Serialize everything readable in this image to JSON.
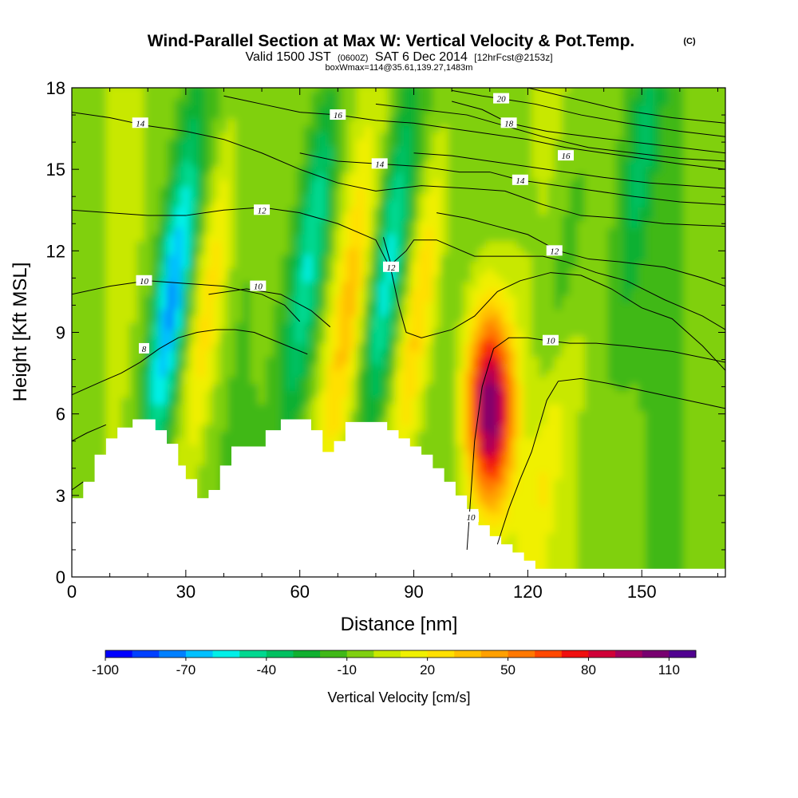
{
  "chart_data": {
    "type": "heatmap",
    "title": "Wind-Parallel Section at Max W: Vertical Velocity & Pot.Temp.",
    "title_mark": "(C)",
    "subtitle": {
      "valid": "Valid 1500 JST",
      "utc": "(0600Z)",
      "date": "SAT 6 Dec 2014",
      "forecast": "[12hrFcst@2153z]"
    },
    "subtitle2": "boxWmax=114@35.61,139.27,1483m",
    "xlabel": "Distance [nm]",
    "ylabel": "Height [Kft MSL]",
    "xlim": [
      0,
      172
    ],
    "ylim": [
      0,
      18
    ],
    "xticks": [
      "0",
      "30",
      "60",
      "90",
      "120",
      "150"
    ],
    "yticks": [
      "0",
      "3",
      "6",
      "9",
      "12",
      "15",
      "18"
    ],
    "colorbar": {
      "label": "Vertical Velocity [cm/s]",
      "range": [
        -100,
        120
      ],
      "step": 10,
      "tick_labels": [
        "-100",
        "-70",
        "-40",
        "-10",
        "20",
        "50",
        "80",
        "110"
      ],
      "colors": [
        "#0000ff",
        "#0040ff",
        "#0080ff",
        "#00c0ff",
        "#00f0e8",
        "#00d890",
        "#00c060",
        "#10b030",
        "#40b818",
        "#80d010",
        "#c8e800",
        "#f0f000",
        "#ffe000",
        "#ffc000",
        "#ffa000",
        "#ff7800",
        "#ff4800",
        "#f01010",
        "#d00038",
        "#a00060",
        "#780070",
        "#500090"
      ]
    },
    "velocity_features": [
      {
        "name": "updraft max",
        "x": 110,
        "z": 6.2,
        "w": 114
      },
      {
        "name": "updraft",
        "x": 91,
        "z": 9.5,
        "w": 40
      },
      {
        "name": "updraft",
        "x": 125,
        "z": 5,
        "w": 35
      },
      {
        "name": "updraft band",
        "x": 36,
        "z": 10,
        "w": 35
      },
      {
        "name": "updraft band",
        "x": 73,
        "z": 10,
        "w": 35
      },
      {
        "name": "downdraft",
        "x": 26,
        "z": 10,
        "w": -70
      },
      {
        "name": "downdraft",
        "x": 63,
        "z": 12,
        "w": -50
      },
      {
        "name": "downdraft",
        "x": 83,
        "z": 11,
        "w": -50
      },
      {
        "name": "downdraft",
        "x": 128,
        "z": 9,
        "w": -30
      },
      {
        "name": "downdraft",
        "x": 150,
        "z": 15.5,
        "w": -25
      }
    ],
    "terrain": [
      [
        0,
        2.9
      ],
      [
        3,
        3.5
      ],
      [
        6,
        4.5
      ],
      [
        9,
        5.1
      ],
      [
        12,
        5.5
      ],
      [
        16,
        5.8
      ],
      [
        22,
        5.4
      ],
      [
        25,
        4.9
      ],
      [
        28,
        4.1
      ],
      [
        30,
        3.6
      ],
      [
        33,
        2.9
      ],
      [
        36,
        3.2
      ],
      [
        39,
        4.1
      ],
      [
        42,
        4.8
      ],
      [
        47,
        4.8
      ],
      [
        51,
        5.4
      ],
      [
        55,
        5.8
      ],
      [
        60,
        5.8
      ],
      [
        63,
        5.4
      ],
      [
        66,
        4.6
      ],
      [
        69,
        5.0
      ],
      [
        72,
        5.7
      ],
      [
        80,
        5.7
      ],
      [
        83,
        5.4
      ],
      [
        86,
        5.1
      ],
      [
        89,
        4.8
      ],
      [
        92,
        4.5
      ],
      [
        95,
        4.0
      ],
      [
        98,
        3.5
      ],
      [
        101,
        3.0
      ],
      [
        104,
        2.5
      ],
      [
        107,
        1.9
      ],
      [
        110,
        1.5
      ],
      [
        113,
        1.2
      ],
      [
        116,
        0.9
      ],
      [
        119,
        0.6
      ],
      [
        122,
        0.3
      ],
      [
        126,
        0.3
      ],
      [
        172,
        0.3
      ]
    ],
    "theta_contours": [
      {
        "label": "8",
        "label_pos": [
          19,
          8.4
        ],
        "points": [
          [
            0,
            6.7
          ],
          [
            8,
            7.2
          ],
          [
            13,
            7.5
          ],
          [
            18,
            7.9
          ],
          [
            23,
            8.4
          ],
          [
            28,
            8.8
          ],
          [
            33,
            9.0
          ],
          [
            38,
            9.1
          ],
          [
            43,
            9.1
          ],
          [
            48,
            9.0
          ],
          [
            55,
            8.6
          ],
          [
            62,
            8.2
          ]
        ]
      },
      {
        "label": "10",
        "label_pos": [
          19,
          10.9
        ],
        "points": [
          [
            0,
            10.4
          ],
          [
            10,
            10.7
          ],
          [
            20,
            10.9
          ],
          [
            30,
            10.8
          ],
          [
            40,
            10.7
          ],
          [
            50,
            10.4
          ],
          [
            56,
            10.0
          ],
          [
            60,
            9.4
          ]
        ]
      },
      {
        "label": "10",
        "label_pos": [
          49,
          10.7
        ],
        "points": [
          [
            36,
            10.4
          ],
          [
            46,
            10.6
          ],
          [
            55,
            10.4
          ],
          [
            63,
            9.8
          ],
          [
            68,
            9.2
          ]
        ]
      },
      {
        "label": "10",
        "label_pos": [
          105,
          2.2
        ],
        "points": [
          [
            104,
            1.0
          ],
          [
            105,
            3.0
          ],
          [
            106,
            5.0
          ],
          [
            108,
            7.0
          ],
          [
            111,
            8.4
          ],
          [
            115,
            8.8
          ],
          [
            120,
            8.8
          ],
          [
            125,
            8.7
          ],
          [
            131,
            8.6
          ],
          [
            138,
            8.6
          ],
          [
            146,
            8.5
          ],
          [
            158,
            8.3
          ],
          [
            172,
            7.9
          ]
        ]
      },
      {
        "label": "10",
        "label_pos": [
          126,
          8.7
        ],
        "points": [
          [
            112,
            1.2
          ],
          [
            115,
            2.5
          ],
          [
            118,
            3.6
          ],
          [
            121,
            4.6
          ],
          [
            125,
            6.5
          ],
          [
            128,
            7.2
          ],
          [
            134,
            7.3
          ],
          [
            142,
            7.1
          ],
          [
            152,
            6.8
          ],
          [
            162,
            6.5
          ],
          [
            172,
            6.2
          ]
        ]
      },
      {
        "label": "12",
        "label_pos": [
          50,
          13.5
        ],
        "points": [
          [
            0,
            13.5
          ],
          [
            10,
            13.4
          ],
          [
            20,
            13.3
          ],
          [
            30,
            13.3
          ],
          [
            40,
            13.5
          ],
          [
            50,
            13.6
          ],
          [
            60,
            13.4
          ],
          [
            70,
            13.0
          ],
          [
            80,
            12.4
          ],
          [
            84,
            11.3
          ],
          [
            86,
            10.0
          ],
          [
            88,
            9.0
          ],
          [
            92,
            8.8
          ],
          [
            100,
            9.1
          ],
          [
            106,
            9.6
          ],
          [
            112,
            10.5
          ],
          [
            118,
            10.9
          ],
          [
            126,
            11.2
          ],
          [
            134,
            11.1
          ],
          [
            142,
            10.6
          ],
          [
            150,
            9.9
          ],
          [
            158,
            9.5
          ],
          [
            166,
            8.5
          ],
          [
            172,
            7.6
          ]
        ]
      },
      {
        "label": "12",
        "label_pos": [
          84,
          11.4
        ],
        "points": [
          [
            82,
            12.5
          ],
          [
            84,
            11.5
          ],
          [
            88,
            12.0
          ],
          [
            90,
            12.4
          ],
          [
            96,
            12.4
          ],
          [
            106,
            11.8
          ],
          [
            116,
            11.8
          ],
          [
            124,
            11.8
          ],
          [
            130,
            11.6
          ],
          [
            138,
            11.2
          ],
          [
            146,
            10.9
          ],
          [
            156,
            10.2
          ],
          [
            166,
            9.6
          ],
          [
            172,
            9.1
          ]
        ]
      },
      {
        "label": "12",
        "label_pos": [
          127,
          12.0
        ],
        "points": [
          [
            96,
            13.4
          ],
          [
            104,
            13.2
          ],
          [
            112,
            12.9
          ],
          [
            120,
            12.6
          ],
          [
            128,
            12.0
          ],
          [
            136,
            11.7
          ],
          [
            144,
            11.6
          ],
          [
            156,
            11.4
          ],
          [
            166,
            11.0
          ],
          [
            172,
            10.7
          ]
        ]
      },
      {
        "label": "14",
        "label_pos": [
          18,
          16.7
        ],
        "points": [
          [
            0,
            17.1
          ],
          [
            10,
            16.9
          ],
          [
            20,
            16.6
          ],
          [
            30,
            16.4
          ],
          [
            40,
            16.1
          ],
          [
            50,
            15.6
          ],
          [
            60,
            15.0
          ],
          [
            70,
            14.5
          ],
          [
            80,
            14.2
          ],
          [
            92,
            14.4
          ],
          [
            104,
            14.3
          ],
          [
            114,
            14.2
          ],
          [
            124,
            13.7
          ],
          [
            134,
            13.3
          ],
          [
            144,
            13.2
          ],
          [
            156,
            13.0
          ],
          [
            172,
            12.9
          ]
        ]
      },
      {
        "label": "14",
        "label_pos": [
          81,
          15.2
        ],
        "points": [
          [
            60,
            15.6
          ],
          [
            70,
            15.3
          ],
          [
            81,
            15.2
          ],
          [
            92,
            15.1
          ],
          [
            102,
            14.9
          ],
          [
            110,
            14.9
          ],
          [
            118,
            14.6
          ],
          [
            128,
            14.4
          ],
          [
            138,
            14.2
          ],
          [
            148,
            14.0
          ],
          [
            160,
            13.8
          ],
          [
            172,
            13.7
          ]
        ]
      },
      {
        "label": "14",
        "label_pos": [
          118,
          14.6
        ],
        "points": [
          [
            90,
            15.6
          ],
          [
            100,
            15.5
          ],
          [
            110,
            15.3
          ],
          [
            120,
            15.1
          ],
          [
            130,
            14.9
          ],
          [
            140,
            14.7
          ],
          [
            152,
            14.5
          ],
          [
            172,
            14.3
          ]
        ]
      },
      {
        "label": "16",
        "label_pos": [
          70,
          17.0
        ],
        "points": [
          [
            40,
            17.7
          ],
          [
            50,
            17.4
          ],
          [
            60,
            17.1
          ],
          [
            70,
            17.0
          ],
          [
            80,
            16.8
          ],
          [
            90,
            16.7
          ],
          [
            100,
            16.5
          ],
          [
            110,
            16.3
          ],
          [
            120,
            16.1
          ],
          [
            130,
            15.8
          ],
          [
            140,
            15.6
          ],
          [
            150,
            15.4
          ],
          [
            160,
            15.2
          ],
          [
            172,
            15.0
          ]
        ]
      },
      {
        "label": "16",
        "label_pos": [
          130,
          15.5
        ],
        "points": [
          [
            80,
            17.4
          ],
          [
            92,
            17.2
          ],
          [
            104,
            17.0
          ],
          [
            114,
            16.6
          ],
          [
            124,
            16.2
          ],
          [
            136,
            15.8
          ],
          [
            148,
            15.6
          ],
          [
            160,
            15.4
          ],
          [
            172,
            15.3
          ]
        ]
      },
      {
        "label": "18",
        "label_pos": [
          115,
          16.7
        ],
        "points": [
          [
            100,
            17.5
          ],
          [
            108,
            17.2
          ],
          [
            115,
            16.7
          ],
          [
            125,
            16.4
          ],
          [
            136,
            16.2
          ],
          [
            148,
            16.0
          ],
          [
            160,
            15.8
          ],
          [
            172,
            15.6
          ]
        ]
      },
      {
        "label": "20",
        "label_pos": [
          113,
          17.6
        ],
        "points": [
          [
            100,
            17.9
          ],
          [
            108,
            17.7
          ],
          [
            113,
            17.6
          ],
          [
            122,
            17.4
          ],
          [
            134,
            17.0
          ],
          [
            146,
            16.7
          ],
          [
            160,
            16.4
          ],
          [
            172,
            16.2
          ]
        ]
      },
      {
        "label": "",
        "label_pos": null,
        "points": [
          [
            120,
            18.0
          ],
          [
            132,
            17.6
          ],
          [
            144,
            17.2
          ],
          [
            158,
            16.9
          ],
          [
            172,
            16.7
          ]
        ]
      },
      {
        "label": "",
        "label_pos": null,
        "points": [
          [
            0,
            5.0
          ],
          [
            4,
            5.3
          ],
          [
            9,
            5.6
          ]
        ]
      },
      {
        "label": "",
        "label_pos": null,
        "points": [
          [
            0,
            3.2
          ],
          [
            3,
            3.5
          ]
        ]
      }
    ]
  }
}
